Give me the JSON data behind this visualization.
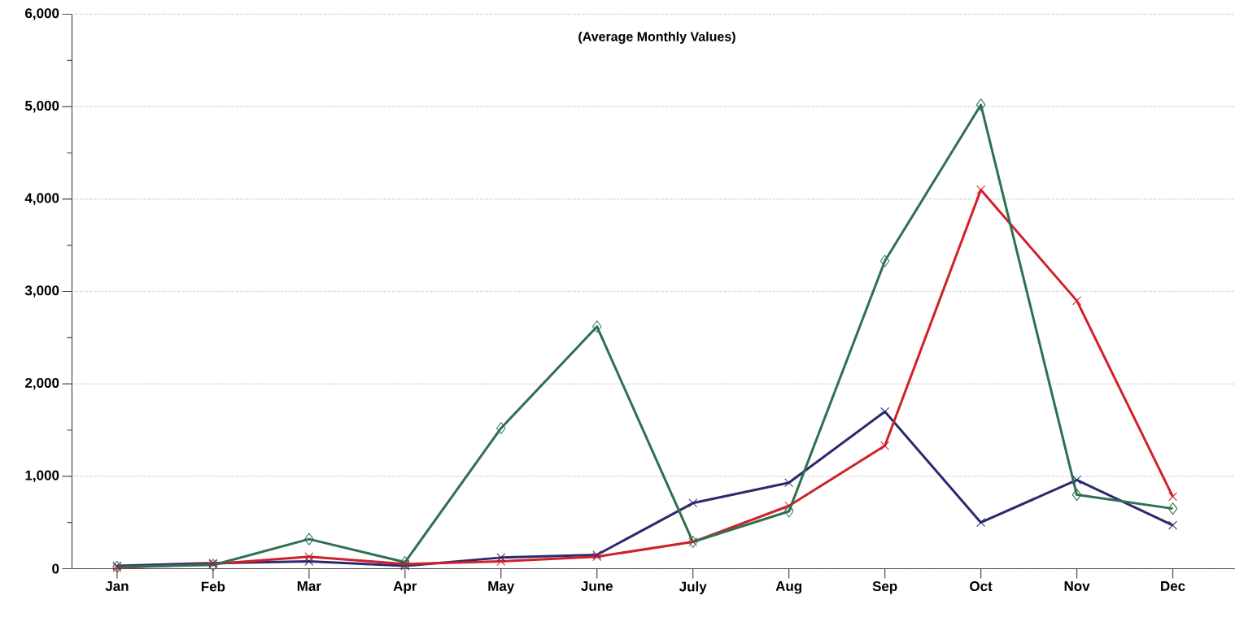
{
  "chart_data": {
    "type": "line",
    "title": "(Average Monthly Values)",
    "categories": [
      "Jan",
      "Feb",
      "Mar",
      "Apr",
      "May",
      "June",
      "July",
      "Aug",
      "Sep",
      "Oct",
      "Nov",
      "Dec"
    ],
    "series": [
      {
        "color": "#2a2a70",
        "marker": "cross",
        "values": [
          30,
          60,
          80,
          30,
          120,
          150,
          710,
          930,
          1700,
          500,
          960,
          470
        ]
      },
      {
        "color": "#d0202a",
        "marker": "cross",
        "values": [
          10,
          50,
          130,
          50,
          80,
          130,
          290,
          680,
          1330,
          4100,
          2900,
          780
        ]
      },
      {
        "color": "#2e7050",
        "marker": "diamond",
        "values": [
          20,
          40,
          320,
          70,
          1520,
          2620,
          290,
          620,
          3330,
          5020,
          800,
          650
        ]
      }
    ],
    "ylim": [
      0,
      6000
    ],
    "yticks": [
      {
        "value": 0,
        "label": "0"
      },
      {
        "value": 1000,
        "label": "1,000"
      },
      {
        "value": 2000,
        "label": "2,000"
      },
      {
        "value": 3000,
        "label": "3,000"
      },
      {
        "value": 4000,
        "label": "4,000"
      },
      {
        "value": 5000,
        "label": "5,000"
      },
      {
        "value": 6000,
        "label": "6,000"
      }
    ],
    "grid": "y"
  }
}
